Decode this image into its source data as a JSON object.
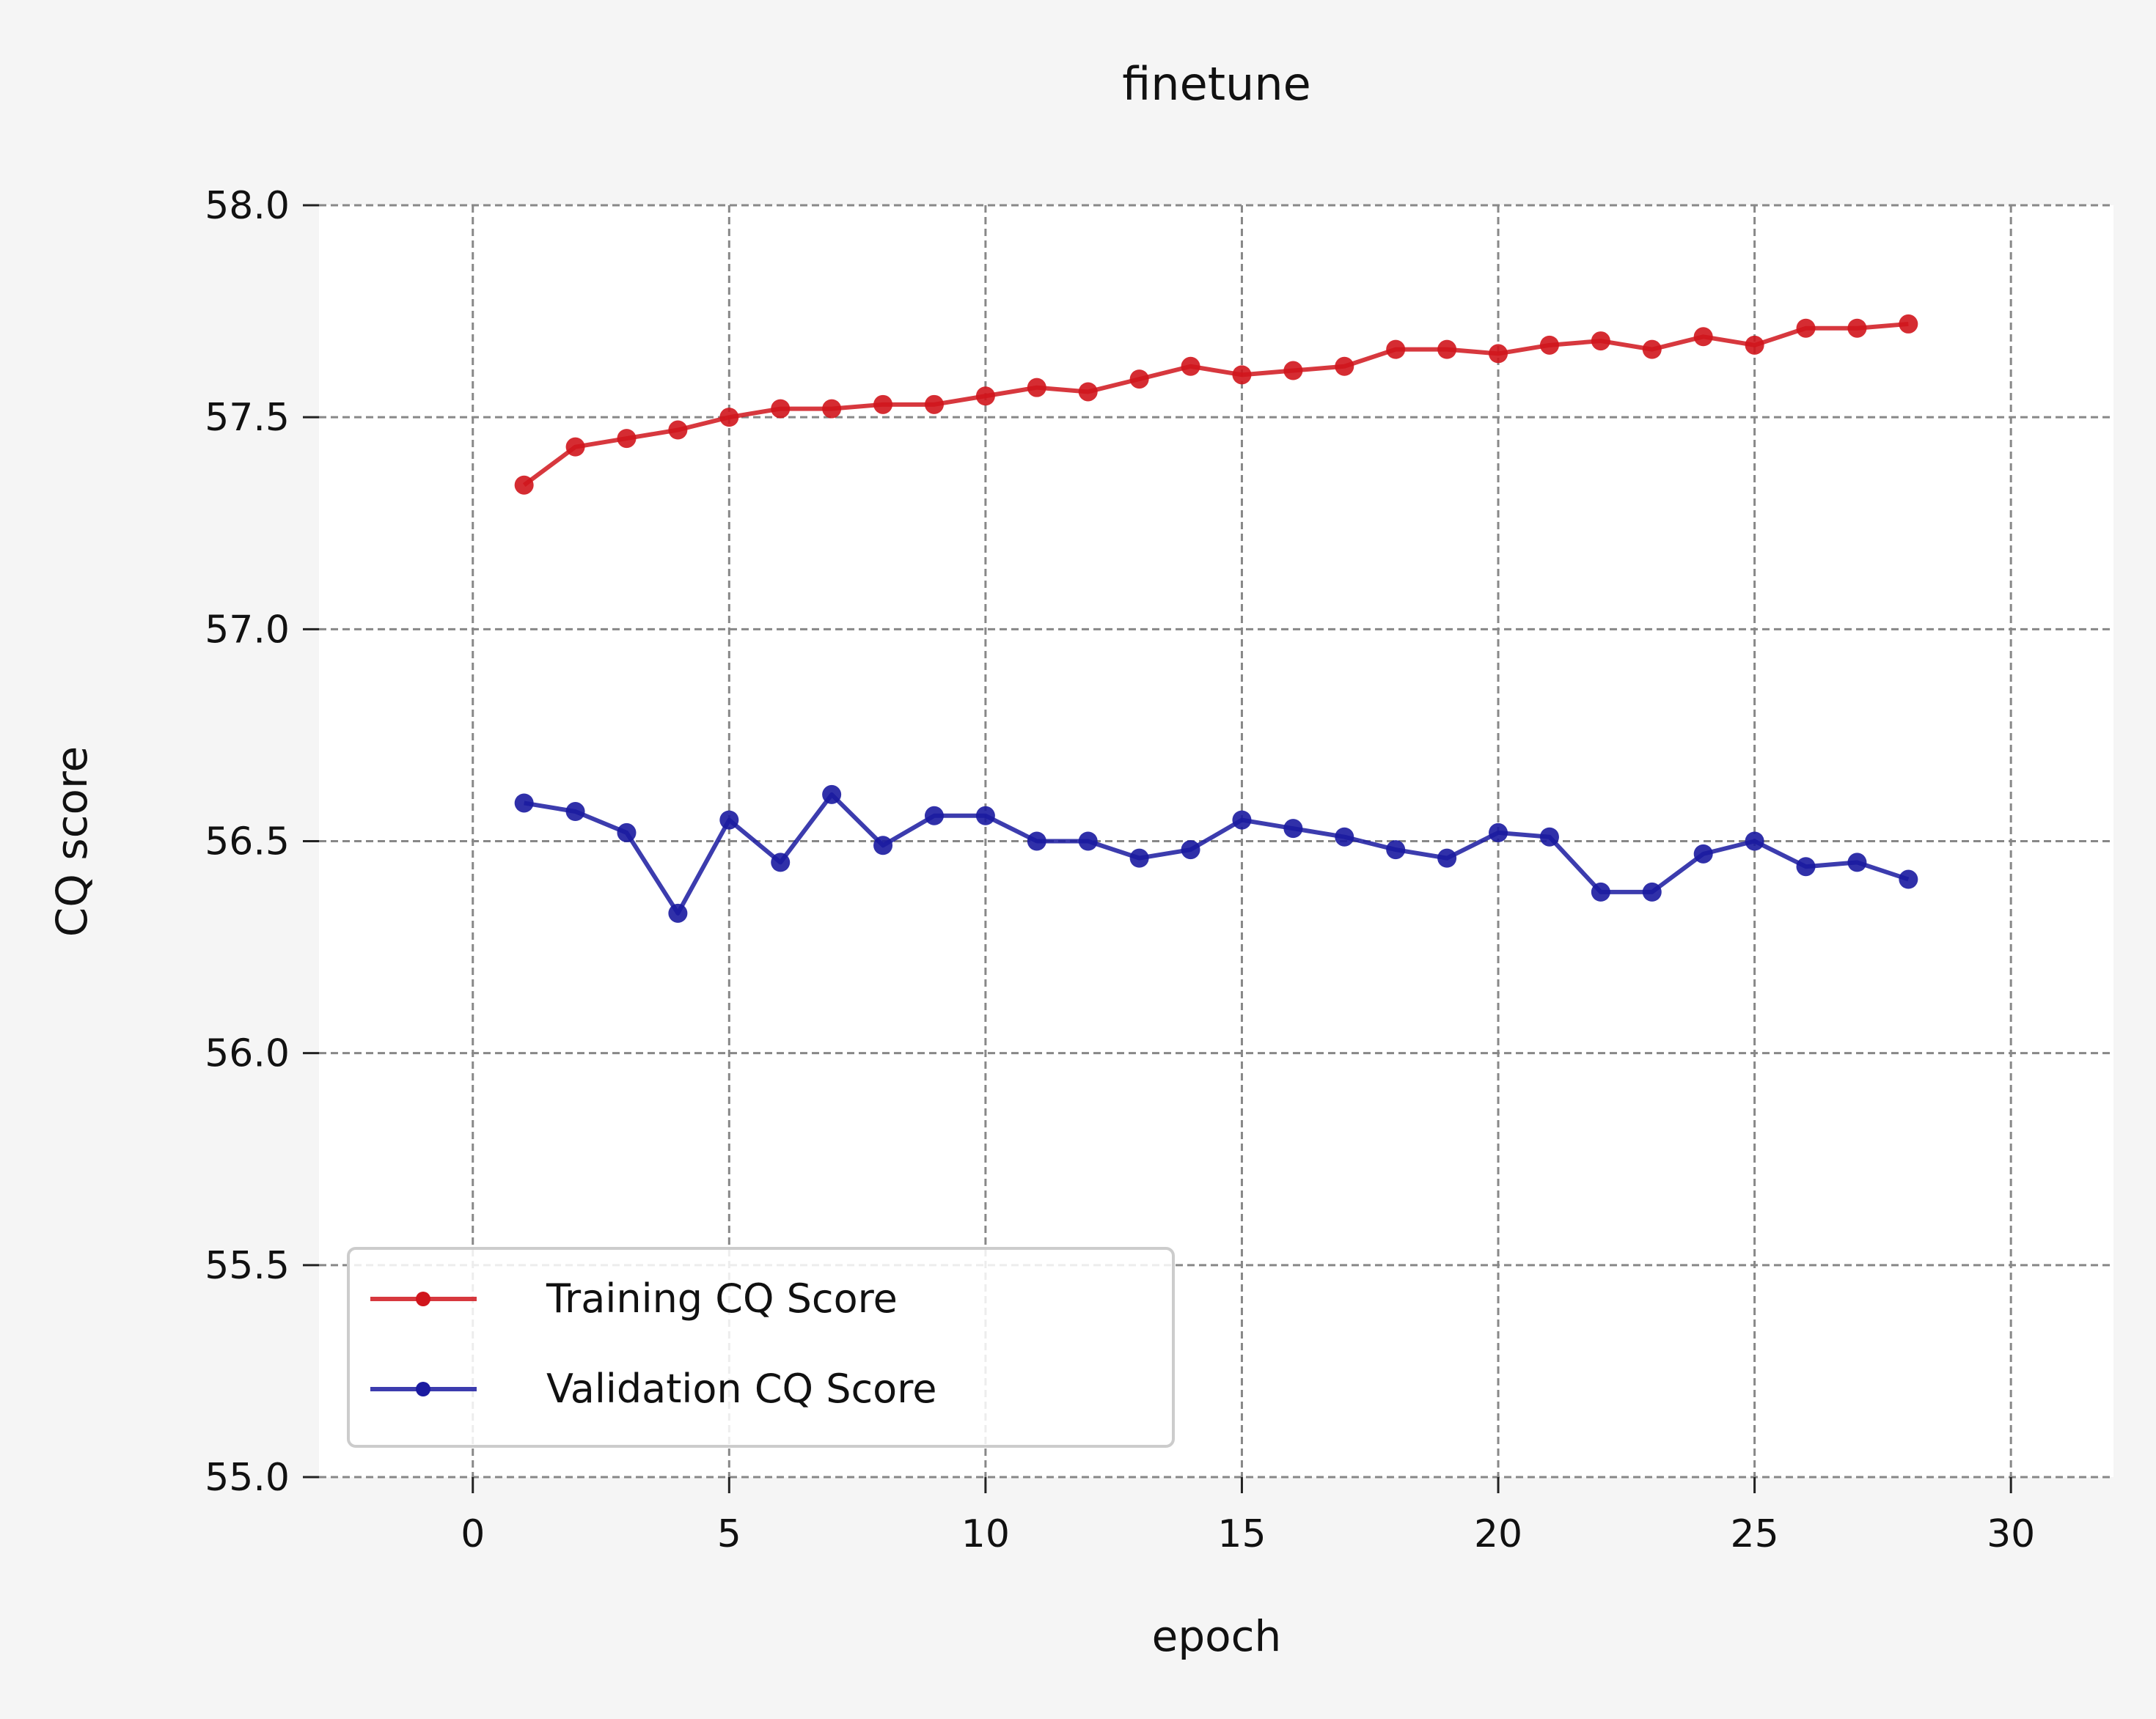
{
  "chart_data": {
    "type": "line",
    "title": "finetune",
    "xlabel": "epoch",
    "ylabel": "CQ score",
    "xlim": [
      -3,
      32
    ],
    "ylim": [
      55.0,
      58.0
    ],
    "xticks": [
      0,
      5,
      10,
      15,
      20,
      25,
      30
    ],
    "xtick_labels": [
      "0",
      "5",
      "10",
      "15",
      "20",
      "25",
      "30"
    ],
    "yticks": [
      55.0,
      55.5,
      56.0,
      56.5,
      57.0,
      57.5,
      58.0
    ],
    "ytick_labels": [
      "55.0",
      "55.5",
      "56.0",
      "56.5",
      "57.0",
      "57.5",
      "58.0"
    ],
    "grid": true,
    "legend_position": "lower-left",
    "x": [
      1,
      2,
      3,
      4,
      5,
      6,
      7,
      8,
      9,
      10,
      11,
      12,
      13,
      14,
      15,
      16,
      17,
      18,
      19,
      20,
      21,
      22,
      23,
      24,
      25,
      26,
      27,
      28
    ],
    "series": [
      {
        "name": "Training CQ Score",
        "color": "#d0151c",
        "values": [
          57.34,
          57.43,
          57.45,
          57.47,
          57.5,
          57.52,
          57.52,
          57.53,
          57.53,
          57.55,
          57.57,
          57.56,
          57.59,
          57.62,
          57.6,
          57.61,
          57.62,
          57.66,
          57.66,
          57.65,
          57.67,
          57.68,
          57.66,
          57.69,
          57.67,
          57.71,
          57.71,
          57.72
        ]
      },
      {
        "name": "Validation CQ Score",
        "color": "#1a1aa0",
        "values": [
          56.59,
          56.57,
          56.52,
          56.33,
          56.55,
          56.45,
          56.61,
          56.49,
          56.56,
          56.56,
          56.5,
          56.5,
          56.46,
          56.48,
          56.55,
          56.53,
          56.51,
          56.48,
          56.46,
          56.52,
          56.51,
          56.38,
          56.38,
          56.47,
          56.5,
          56.44,
          56.45,
          56.41
        ]
      }
    ]
  }
}
